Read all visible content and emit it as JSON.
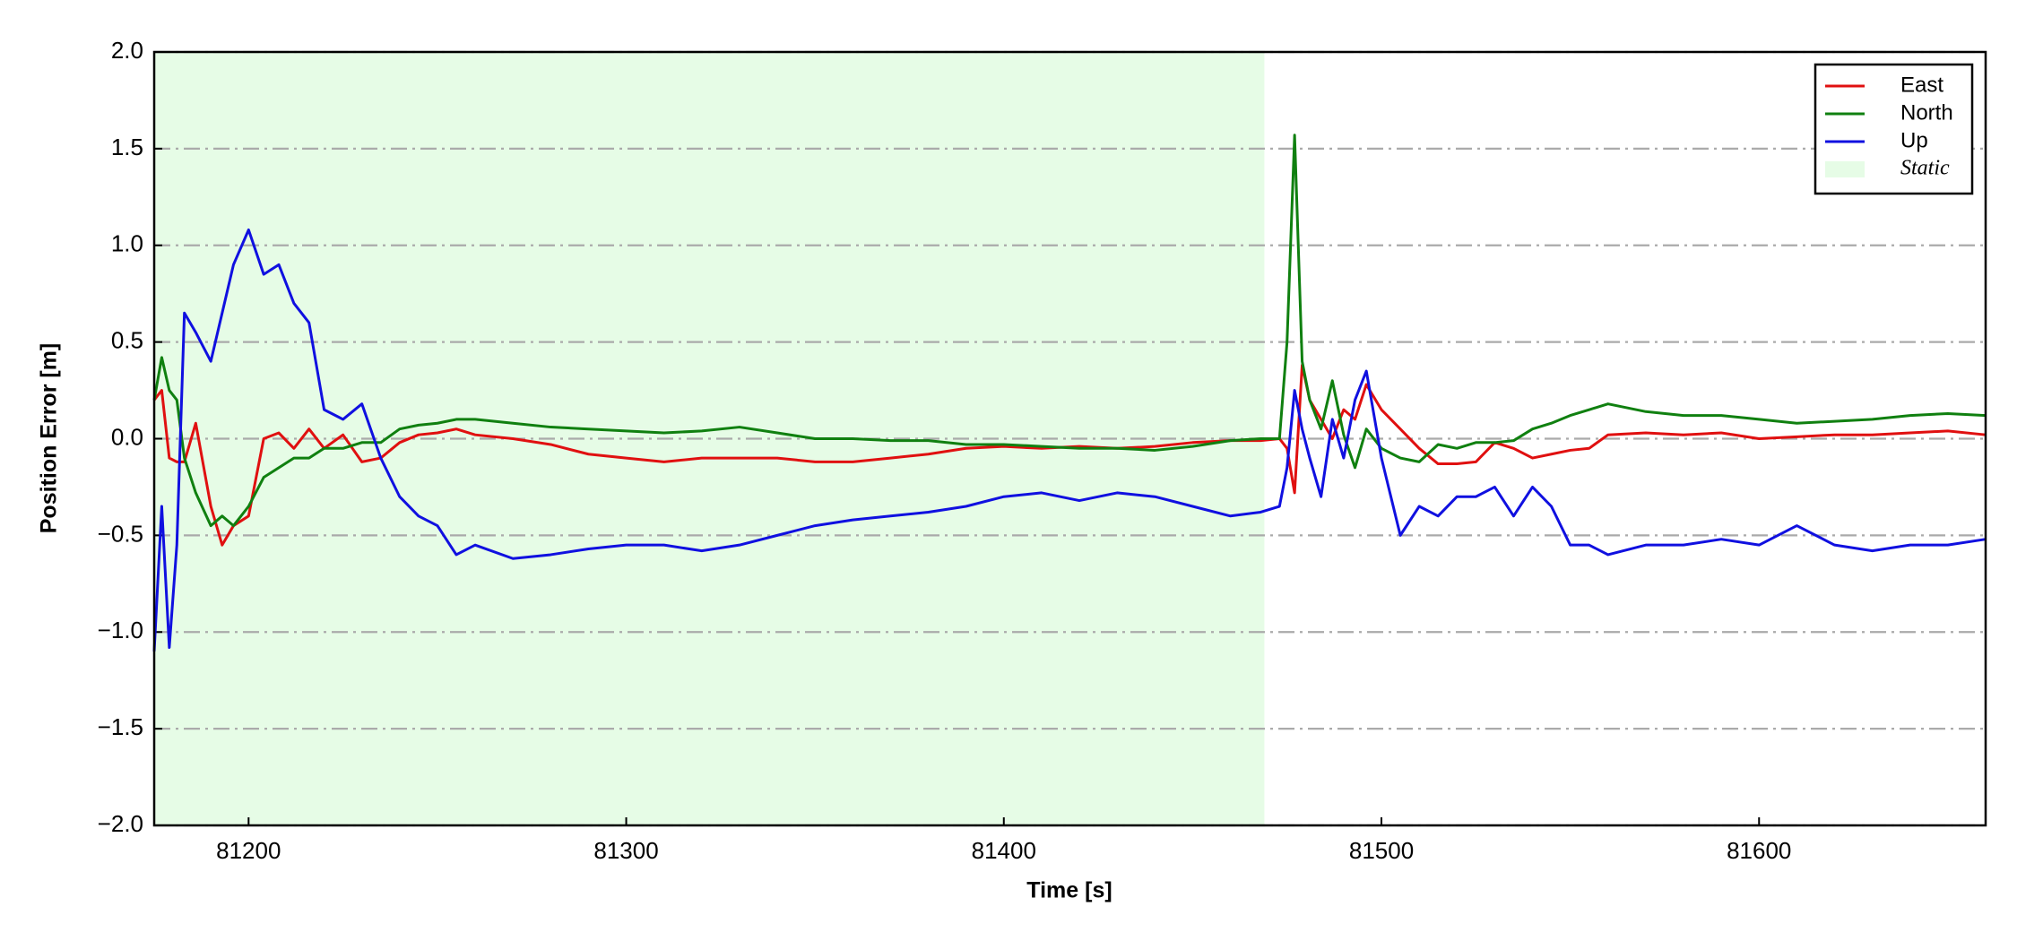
{
  "chart_data": {
    "type": "line",
    "xlabel": "Time [s]",
    "ylabel": "Position Error [m]",
    "x": [
      81175,
      81177,
      81179,
      81181,
      81183,
      81186,
      81190,
      81193,
      81196,
      81200,
      81204,
      81208,
      81212,
      81216,
      81220,
      81225,
      81230,
      81235,
      81240,
      81245,
      81250,
      81255,
      81260,
      81270,
      81280,
      81290,
      81300,
      81310,
      81320,
      81330,
      81340,
      81350,
      81360,
      81370,
      81380,
      81390,
      81400,
      81410,
      81420,
      81430,
      81440,
      81450,
      81460,
      81468,
      81473,
      81475,
      81477,
      81479,
      81481,
      81484,
      81487,
      81490,
      81493,
      81496,
      81500,
      81505,
      81510,
      81515,
      81520,
      81525,
      81530,
      81535,
      81540,
      81545,
      81550,
      81555,
      81560,
      81570,
      81580,
      81590,
      81600,
      81610,
      81620,
      81630,
      81640,
      81650,
      81660
    ],
    "series": [
      {
        "name": "East",
        "color": "#e01010",
        "values": [
          0.2,
          0.25,
          -0.1,
          -0.12,
          -0.12,
          0.08,
          -0.35,
          -0.55,
          -0.45,
          -0.4,
          0.0,
          0.03,
          -0.05,
          0.05,
          -0.05,
          0.02,
          -0.12,
          -0.1,
          -0.02,
          0.02,
          0.03,
          0.05,
          0.02,
          0.0,
          -0.03,
          -0.08,
          -0.1,
          -0.12,
          -0.1,
          -0.1,
          -0.1,
          -0.12,
          -0.12,
          -0.1,
          -0.08,
          -0.05,
          -0.04,
          -0.05,
          -0.04,
          -0.05,
          -0.04,
          -0.02,
          -0.01,
          -0.01,
          0.0,
          -0.05,
          -0.28,
          0.38,
          0.2,
          0.1,
          0.0,
          0.15,
          0.1,
          0.28,
          0.15,
          0.05,
          -0.05,
          -0.13,
          -0.13,
          -0.12,
          -0.02,
          -0.05,
          -0.1,
          -0.08,
          -0.06,
          -0.05,
          0.02,
          0.03,
          0.02,
          0.03,
          0.0,
          0.01,
          0.02,
          0.02,
          0.03,
          0.04,
          0.02
        ]
      },
      {
        "name": "North",
        "color": "#108010",
        "values": [
          0.2,
          0.42,
          0.25,
          0.2,
          -0.1,
          -0.28,
          -0.45,
          -0.4,
          -0.45,
          -0.35,
          -0.2,
          -0.15,
          -0.1,
          -0.1,
          -0.05,
          -0.05,
          -0.02,
          -0.02,
          0.05,
          0.07,
          0.08,
          0.1,
          0.1,
          0.08,
          0.06,
          0.05,
          0.04,
          0.03,
          0.04,
          0.06,
          0.03,
          0.0,
          0.0,
          -0.01,
          -0.01,
          -0.03,
          -0.03,
          -0.04,
          -0.05,
          -0.05,
          -0.06,
          -0.04,
          -0.01,
          0.0,
          0.0,
          0.5,
          1.57,
          0.4,
          0.2,
          0.05,
          0.3,
          0.02,
          -0.15,
          0.05,
          -0.05,
          -0.1,
          -0.12,
          -0.03,
          -0.05,
          -0.02,
          -0.02,
          -0.01,
          0.05,
          0.08,
          0.12,
          0.15,
          0.18,
          0.14,
          0.12,
          0.12,
          0.1,
          0.08,
          0.09,
          0.1,
          0.12,
          0.13,
          0.12
        ]
      },
      {
        "name": "Up",
        "color": "#1010e0",
        "values": [
          -1.1,
          -0.35,
          -1.08,
          -0.55,
          0.65,
          0.55,
          0.4,
          0.65,
          0.9,
          1.08,
          0.85,
          0.9,
          0.7,
          0.6,
          0.15,
          0.1,
          0.18,
          -0.1,
          -0.3,
          -0.4,
          -0.45,
          -0.6,
          -0.55,
          -0.62,
          -0.6,
          -0.57,
          -0.55,
          -0.55,
          -0.58,
          -0.55,
          -0.5,
          -0.45,
          -0.42,
          -0.4,
          -0.38,
          -0.35,
          -0.3,
          -0.28,
          -0.32,
          -0.28,
          -0.3,
          -0.35,
          -0.4,
          -0.38,
          -0.35,
          -0.15,
          0.25,
          0.05,
          -0.1,
          -0.3,
          0.1,
          -0.1,
          0.2,
          0.35,
          -0.1,
          -0.5,
          -0.35,
          -0.4,
          -0.3,
          -0.3,
          -0.25,
          -0.4,
          -0.25,
          -0.35,
          -0.55,
          -0.55,
          -0.6,
          -0.55,
          -0.55,
          -0.52,
          -0.55,
          -0.45,
          -0.55,
          -0.58,
          -0.55,
          -0.55,
          -0.52
        ]
      }
    ],
    "shaded": {
      "name": "Static",
      "color": "#e6fce6",
      "x": [
        81175,
        81469
      ]
    },
    "xlim": [
      81175,
      81660
    ],
    "ylim": [
      -2.0,
      2.0
    ],
    "xticks": [
      81200,
      81300,
      81400,
      81500,
      81600
    ],
    "yticks": [
      {
        "value": -2.0,
        "label": "−2.0"
      },
      {
        "value": -1.5,
        "label": "−1.5"
      },
      {
        "value": -1.0,
        "label": "−1.0"
      },
      {
        "value": -0.5,
        "label": "−0.5"
      },
      {
        "value": 0.0,
        "label": "0.0"
      },
      {
        "value": 0.5,
        "label": "0.5"
      },
      {
        "value": 1.0,
        "label": "1.0"
      },
      {
        "value": 1.5,
        "label": "1.5"
      },
      {
        "value": 2.0,
        "label": "2.0"
      }
    ],
    "grid": true,
    "legend": "upper right"
  }
}
